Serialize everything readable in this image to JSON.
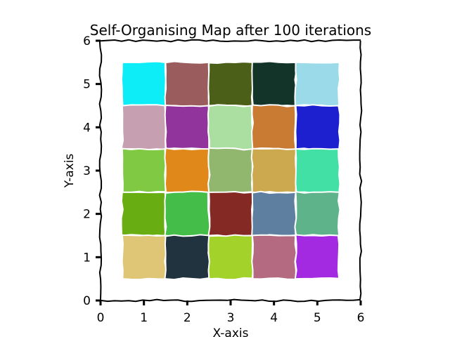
{
  "chart_data": {
    "type": "heatmap",
    "title": "Self-Organising Map after 100 iterations",
    "xlabel": "X-axis",
    "ylabel": "Y-axis",
    "xlim": [
      0,
      6
    ],
    "ylim": [
      0,
      6
    ],
    "x_ticks": [
      "0",
      "1",
      "2",
      "3",
      "4",
      "5",
      "6"
    ],
    "y_ticks": [
      "0",
      "1",
      "2",
      "3",
      "4",
      "5",
      "6"
    ],
    "grid": false,
    "cell_border_color": "#ffffff",
    "cells": [
      {
        "x": 1,
        "y": 5,
        "color": "#0dedf7"
      },
      {
        "x": 2,
        "y": 5,
        "color": "#9a5c5c"
      },
      {
        "x": 3,
        "y": 5,
        "color": "#4b5f19"
      },
      {
        "x": 4,
        "y": 5,
        "color": "#123429"
      },
      {
        "x": 5,
        "y": 5,
        "color": "#9bdbe9"
      },
      {
        "x": 1,
        "y": 4,
        "color": "#c69fb1"
      },
      {
        "x": 2,
        "y": 4,
        "color": "#91359d"
      },
      {
        "x": 3,
        "y": 4,
        "color": "#abdfa2"
      },
      {
        "x": 4,
        "y": 4,
        "color": "#c97b34"
      },
      {
        "x": 5,
        "y": 4,
        "color": "#1c20cf"
      },
      {
        "x": 1,
        "y": 3,
        "color": "#80c943"
      },
      {
        "x": 2,
        "y": 3,
        "color": "#e0891a"
      },
      {
        "x": 3,
        "y": 3,
        "color": "#91b76f"
      },
      {
        "x": 4,
        "y": 3,
        "color": "#cca94f"
      },
      {
        "x": 5,
        "y": 3,
        "color": "#42e0a5"
      },
      {
        "x": 1,
        "y": 2,
        "color": "#68ad12"
      },
      {
        "x": 2,
        "y": 2,
        "color": "#44be49"
      },
      {
        "x": 3,
        "y": 2,
        "color": "#842923"
      },
      {
        "x": 4,
        "y": 2,
        "color": "#5e7f9f"
      },
      {
        "x": 5,
        "y": 2,
        "color": "#5fb38b"
      },
      {
        "x": 1,
        "y": 1,
        "color": "#dfc677"
      },
      {
        "x": 2,
        "y": 1,
        "color": "#21333f"
      },
      {
        "x": 3,
        "y": 1,
        "color": "#a3d22b"
      },
      {
        "x": 4,
        "y": 1,
        "color": "#b46b81"
      },
      {
        "x": 5,
        "y": 1,
        "color": "#a32ae1"
      }
    ]
  }
}
